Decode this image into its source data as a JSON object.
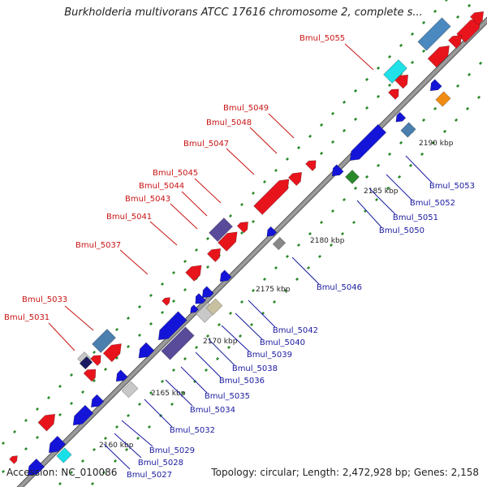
{
  "title": "Burkholderia multivorans ATCC 17616 chromosome 2, complete s...",
  "footer": {
    "accession": "Accession: NC_010086",
    "summary": "Topology: circular; Length: 2,472,928 bp; Genes: 2,158"
  },
  "kbp_labels": [
    "2160 kbp",
    "2165 kbp",
    "2170 kbp",
    "2175 kbp",
    "2180 kbp",
    "2185 kbp",
    "2190 kbp"
  ],
  "gene_labels_forward": [
    "Bmul_5031",
    "Bmul_5033",
    "Bmul_5037",
    "Bmul_5041",
    "Bmul_5043",
    "Bmul_5044",
    "Bmul_5045",
    "Bmul_5047",
    "Bmul_5048",
    "Bmul_5049",
    "Bmul_5055"
  ],
  "gene_labels_reverse": [
    "Bmul_5027",
    "Bmul_5028",
    "Bmul_5029",
    "Bmul_5032",
    "Bmul_5034",
    "Bmul_5035",
    "Bmul_5036",
    "Bmul_5038",
    "Bmul_5039",
    "Bmul_5040",
    "Bmul_5042",
    "Bmul_5046",
    "Bmul_5050",
    "Bmul_5051",
    "Bmul_5052",
    "Bmul_5053"
  ],
  "colors": {
    "forward_gene": "#e8141c",
    "reverse_gene": "#1414d8",
    "forward_label": "#c81414",
    "reverse_label": "#1a1aa0",
    "backbone": "#9a9a9a",
    "tick_mark": "#2a8a2a"
  }
}
